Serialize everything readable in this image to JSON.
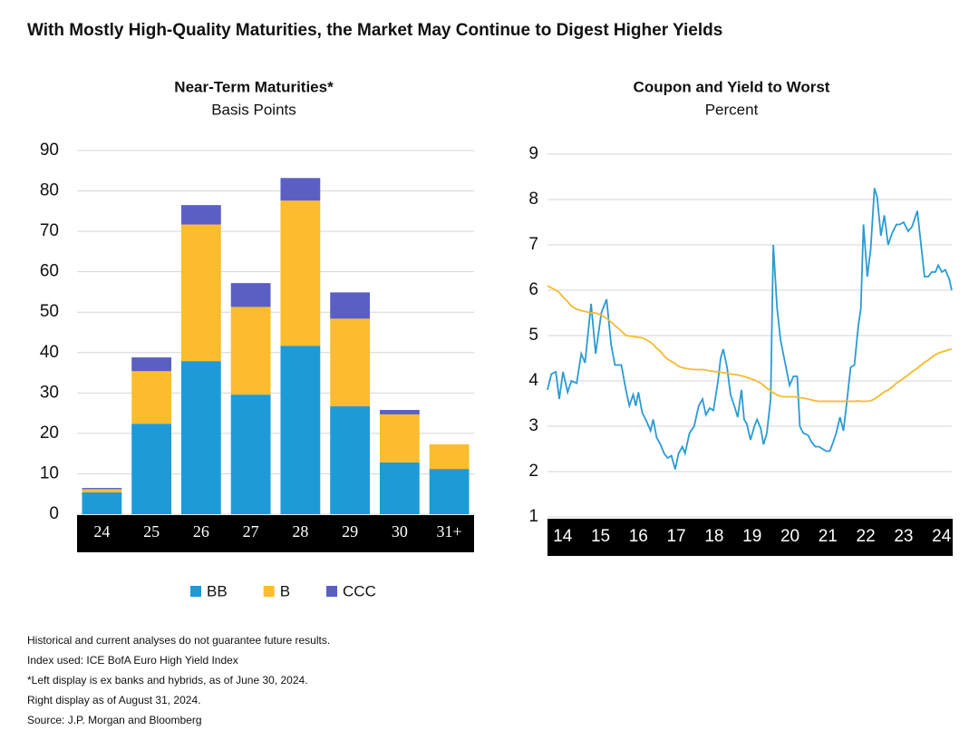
{
  "title": "With Mostly High-Quality Maturities, the Market May Continue to Digest Higher Yields",
  "chart_data": [
    {
      "type": "bar",
      "stacked": true,
      "title": "Near-Term Maturities*",
      "subtitle": "Basis Points",
      "categories": [
        "24",
        "25",
        "26",
        "27",
        "28",
        "29",
        "30",
        "31+"
      ],
      "series": [
        {
          "name": "BB",
          "color": "#1e9bd7",
          "values": [
            5.4,
            22.4,
            37.9,
            29.6,
            41.7,
            26.7,
            12.8,
            11.2
          ]
        },
        {
          "name": "B",
          "color": "#fbbd2f",
          "values": [
            0.8,
            13,
            33.8,
            21.7,
            35.9,
            21.7,
            11.9,
            6.1
          ]
        },
        {
          "name": "CCC",
          "color": "#5b5fc4",
          "values": [
            0.3,
            3.4,
            4.8,
            5.9,
            5.6,
            6.5,
            1.1,
            0
          ]
        }
      ],
      "ylim": [
        0,
        90
      ],
      "yticks": [
        0,
        10,
        20,
        30,
        40,
        50,
        60,
        70,
        80,
        90
      ],
      "grid": true,
      "legend": "bottom"
    },
    {
      "type": "line",
      "title": "Coupon and Yield to Worst",
      "subtitle": "Percent",
      "x": [
        2014.0,
        2014.1,
        2014.22,
        2014.31,
        2014.41,
        2014.53,
        2014.63,
        2014.77,
        2014.89,
        2014.99,
        2015.15,
        2015.27,
        2015.42,
        2015.56,
        2015.68,
        2015.78,
        2015.95,
        2016.07,
        2016.16,
        2016.26,
        2016.33,
        2016.4,
        2016.5,
        2016.62,
        2016.72,
        2016.79,
        2016.88,
        2016.98,
        2017.08,
        2017.17,
        2017.27,
        2017.37,
        2017.46,
        2017.56,
        2017.63,
        2017.75,
        2017.87,
        2017.99,
        2018.09,
        2018.18,
        2018.28,
        2018.38,
        2018.5,
        2018.57,
        2018.64,
        2018.74,
        2018.83,
        2018.95,
        2019.02,
        2019.12,
        2019.19,
        2019.26,
        2019.36,
        2019.46,
        2019.53,
        2019.63,
        2019.7,
        2019.79,
        2019.89,
        2019.96,
        2020.06,
        2020.15,
        2020.27,
        2020.39,
        2020.49,
        2020.59,
        2020.66,
        2020.75,
        2020.88,
        2020.97,
        2021.07,
        2021.16,
        2021.26,
        2021.36,
        2021.45,
        2021.52,
        2021.62,
        2021.72,
        2021.81,
        2021.91,
        2022.0,
        2022.1,
        2022.2,
        2022.27,
        2022.34,
        2022.44,
        2022.53,
        2022.63,
        2022.7,
        2022.8,
        2022.89,
        2022.99,
        2023.09,
        2023.21,
        2023.3,
        2023.4,
        2023.52,
        2023.62,
        2023.76,
        2023.86,
        2023.95,
        2024.05,
        2024.14,
        2024.24,
        2024.31,
        2024.41,
        2024.5,
        2024.6,
        2024.67
      ],
      "series": [
        {
          "color": "#2a9bd4",
          "values": [
            3.8,
            4.15,
            4.2,
            3.6,
            4.2,
            3.75,
            4.0,
            3.95,
            4.6,
            4.4,
            5.7,
            4.6,
            5.5,
            5.8,
            4.8,
            4.35,
            4.35,
            3.8,
            3.45,
            3.7,
            3.45,
            3.75,
            3.3,
            3.1,
            2.9,
            3.15,
            2.75,
            2.6,
            2.4,
            2.3,
            2.35,
            2.05,
            2.4,
            2.55,
            2.4,
            2.85,
            3.0,
            3.45,
            3.6,
            3.25,
            3.4,
            3.35,
            4.0,
            4.5,
            4.7,
            4.3,
            3.7,
            3.4,
            3.2,
            3.8,
            3.15,
            3.05,
            2.7,
            3.0,
            3.15,
            2.95,
            2.6,
            2.85,
            3.6,
            7.0,
            5.6,
            4.9,
            4.4,
            3.9,
            4.1,
            4.1,
            3.0,
            2.85,
            2.8,
            2.65,
            2.55,
            2.55,
            2.5,
            2.45,
            2.45,
            2.6,
            2.85,
            3.2,
            2.9,
            3.6,
            4.3,
            4.35,
            5.2,
            5.6,
            7.45,
            6.3,
            6.9,
            8.25,
            8.05,
            7.2,
            7.65,
            7.0,
            7.25,
            7.45,
            7.45,
            7.5,
            7.3,
            7.4,
            7.75,
            7.0,
            6.3,
            6.3,
            6.4,
            6.4,
            6.55,
            6.4,
            6.45,
            6.25,
            6.0
          ]
        },
        {
          "color": "#f5bb2a",
          "values": [
            6.1,
            6.05,
            6.0,
            5.95,
            5.85,
            5.75,
            5.65,
            5.58,
            5.55,
            5.53,
            5.5,
            5.5,
            5.45,
            5.38,
            5.3,
            5.22,
            5.1,
            5.0,
            4.99,
            4.98,
            4.97,
            4.96,
            4.95,
            4.9,
            4.85,
            4.8,
            4.72,
            4.65,
            4.55,
            4.48,
            4.43,
            4.38,
            4.32,
            4.29,
            4.28,
            4.26,
            4.25,
            4.25,
            4.25,
            4.24,
            4.22,
            4.21,
            4.2,
            4.19,
            4.18,
            4.17,
            4.15,
            4.14,
            4.13,
            4.11,
            4.1,
            4.08,
            4.05,
            4.02,
            3.99,
            3.95,
            3.9,
            3.84,
            3.78,
            3.74,
            3.69,
            3.66,
            3.65,
            3.65,
            3.65,
            3.64,
            3.63,
            3.62,
            3.6,
            3.58,
            3.56,
            3.55,
            3.55,
            3.55,
            3.55,
            3.55,
            3.55,
            3.55,
            3.55,
            3.55,
            3.55,
            3.55,
            3.56,
            3.55,
            3.55,
            3.55,
            3.56,
            3.6,
            3.64,
            3.7,
            3.76,
            3.8,
            3.86,
            3.95,
            4.0,
            4.06,
            4.13,
            4.2,
            4.28,
            4.35,
            4.41,
            4.46,
            4.52,
            4.58,
            4.61,
            4.64,
            4.66,
            4.69,
            4.7
          ]
        }
      ],
      "xlim": [
        2014,
        2024.67
      ],
      "xticks": [
        {
          "value": 2014.4,
          "label": "14"
        },
        {
          "value": 2015.4,
          "label": "15"
        },
        {
          "value": 2016.4,
          "label": "16"
        },
        {
          "value": 2017.4,
          "label": "17"
        },
        {
          "value": 2018.4,
          "label": "18"
        },
        {
          "value": 2019.4,
          "label": "19"
        },
        {
          "value": 2020.4,
          "label": "20"
        },
        {
          "value": 2021.4,
          "label": "21"
        },
        {
          "value": 2022.4,
          "label": "22"
        },
        {
          "value": 2023.4,
          "label": "23"
        },
        {
          "value": 2024.4,
          "label": "24"
        }
      ],
      "ylim": [
        1,
        9
      ],
      "yticks": [
        1,
        2,
        3,
        4,
        5,
        6,
        7,
        8,
        9
      ],
      "grid": true
    }
  ],
  "footnotes": [
    "Historical and current analyses do not guarantee future results.",
    "Index used: ICE BofA Euro High Yield Index",
    "*Left display is ex banks and hybrids, as of June 30, 2024.",
    "Right display as of August 31, 2024.",
    "Source: J.P. Morgan and Bloomberg"
  ]
}
